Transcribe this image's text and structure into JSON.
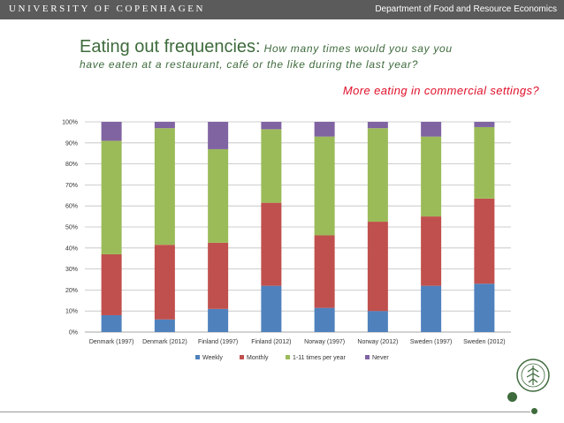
{
  "header": {
    "university": "UNIVERSITY OF COPENHAGEN",
    "department": "Department of Food and Resource Economics"
  },
  "title": {
    "main": "Eating out frequencies:",
    "question_part1": " How many times would you say you",
    "question_part2": "have eaten at a restaurant, café or the like during the last year?"
  },
  "subtitle": "More eating in commercial settings?",
  "colors": {
    "weekly": "#4f81bd",
    "monthly": "#c0504d",
    "occasional": "#9bbb59",
    "never": "#8064a2",
    "accent_green": "#3e6b3c",
    "accent_red": "#e0102a"
  },
  "chart_data": {
    "type": "bar",
    "stacked": true,
    "categories": [
      "Denmark (1997)",
      "Denmark (2012)",
      "Finland (1997)",
      "Finland (2012)",
      "Norway (1997)",
      "Norway (2012)",
      "Sweden (1997)",
      "Sweden (2012)"
    ],
    "series": [
      {
        "name": "Weekly",
        "values": [
          8,
          6,
          11,
          22,
          11.5,
          10,
          22,
          23
        ]
      },
      {
        "name": "Monthly",
        "values": [
          29,
          35.5,
          31.5,
          39.5,
          34.5,
          42.5,
          33,
          40.5
        ]
      },
      {
        "name": "1-11 times per year",
        "values": [
          54,
          55.5,
          44.5,
          35,
          47,
          44.5,
          38,
          34
        ]
      },
      {
        "name": "Never",
        "values": [
          9,
          3,
          13,
          3.5,
          7,
          3,
          7,
          2.5
        ]
      }
    ],
    "ylim": [
      0,
      100
    ],
    "ytick_labels": [
      "0%",
      "10%",
      "20%",
      "30%",
      "40%",
      "50%",
      "60%",
      "70%",
      "80%",
      "90%",
      "100%"
    ],
    "grid": true,
    "legend": "bottom"
  }
}
